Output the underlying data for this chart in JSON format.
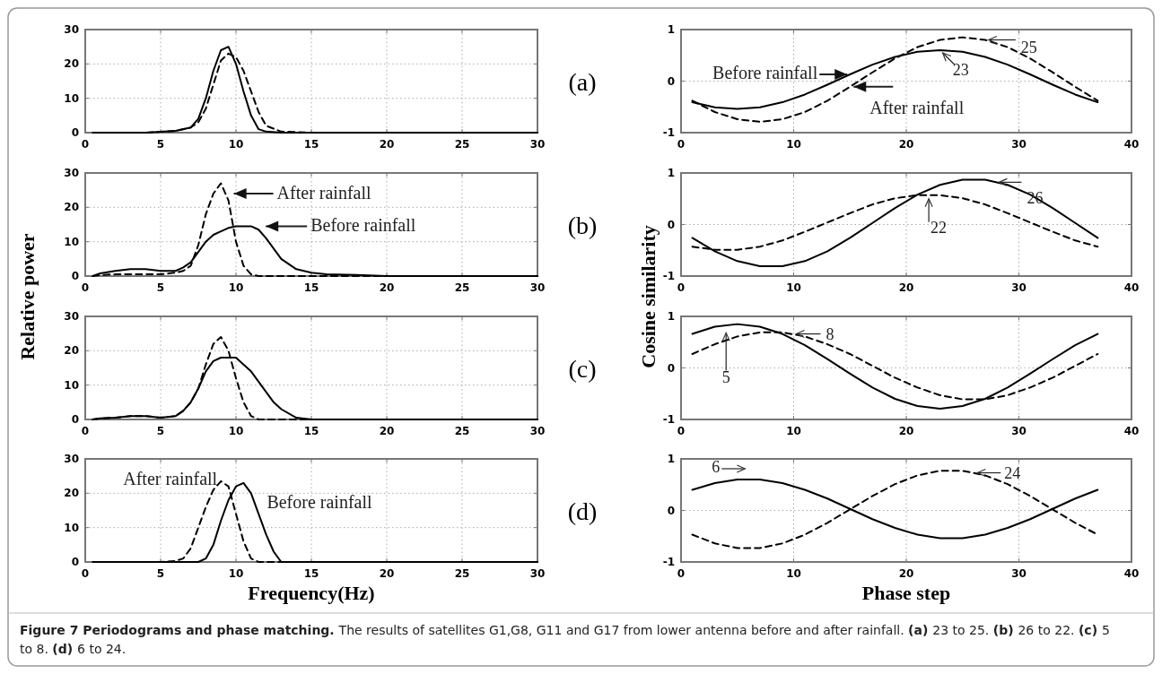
{
  "chart_data": [
    {
      "type": "line",
      "annotations": [
        "(a)"
      ],
      "xlim": [
        0,
        30
      ],
      "ylim": [
        0,
        30
      ],
      "xticks": [
        0,
        5,
        10,
        15,
        20,
        25,
        30
      ],
      "yticks": [
        0,
        10,
        20,
        30
      ],
      "grid": true,
      "series": [
        {
          "color": "#000000",
          "line_style": "solid",
          "x": [
            0.5,
            2,
            4,
            6,
            7,
            7.5,
            8,
            8.5,
            9,
            9.5,
            10,
            10.5,
            11,
            11.5,
            12,
            13,
            15,
            20,
            25,
            30
          ],
          "values": [
            0,
            0,
            0,
            0.5,
            1.5,
            4,
            10,
            18,
            24,
            25,
            20,
            12,
            5,
            1,
            0.3,
            0,
            0,
            0,
            0,
            0
          ]
        },
        {
          "color": "#000000",
          "line_style": "dashed",
          "x": [
            0.5,
            2,
            4,
            6,
            7,
            7.5,
            8,
            8.5,
            9,
            9.5,
            10,
            10.5,
            11,
            11.5,
            12,
            13,
            15,
            20,
            25,
            30
          ],
          "values": [
            0,
            0,
            0,
            0.5,
            1.5,
            3,
            7,
            14,
            21,
            23,
            22,
            18,
            12,
            6,
            2,
            0.3,
            0,
            0,
            0,
            0
          ]
        }
      ]
    },
    {
      "type": "line",
      "xlim": [
        0,
        40
      ],
      "ylim": [
        -1,
        1
      ],
      "xticks": [
        0,
        10,
        20,
        30,
        40
      ],
      "yticks": [
        -1,
        0,
        1
      ],
      "grid": true,
      "annotations": [
        {
          "text": "Before rainfall",
          "x": 15,
          "y": 0.13
        },
        {
          "text": "After rainfall",
          "x": 15,
          "y": -0.11
        },
        {
          "text": "23",
          "x": 23,
          "y": 0.6
        },
        {
          "text": "25",
          "x": 27,
          "y": 0.8
        }
      ],
      "series": [
        {
          "color": "#000000",
          "line_style": "solid",
          "x": [
            1,
            3,
            5,
            7,
            9,
            11,
            13,
            15,
            17,
            19,
            21,
            23,
            25,
            27,
            29,
            31,
            33,
            35,
            37
          ],
          "values": [
            -0.41,
            -0.51,
            -0.54,
            -0.51,
            -0.41,
            -0.26,
            -0.07,
            0.13,
            0.32,
            0.47,
            0.57,
            0.6,
            0.57,
            0.47,
            0.32,
            0.13,
            -0.07,
            -0.26,
            -0.41
          ]
        },
        {
          "color": "#000000",
          "line_style": "dashed",
          "x": [
            1,
            3,
            5,
            7,
            9,
            11,
            13,
            15,
            17,
            19,
            21,
            23,
            25,
            27,
            29,
            31,
            33,
            35,
            37
          ],
          "values": [
            -0.38,
            -0.6,
            -0.74,
            -0.79,
            -0.74,
            -0.6,
            -0.38,
            -0.11,
            0.17,
            0.44,
            0.66,
            0.8,
            0.85,
            0.8,
            0.66,
            0.44,
            0.17,
            -0.11,
            -0.38
          ]
        }
      ]
    },
    {
      "type": "line",
      "ylabel": "Relative power",
      "xlim": [
        0,
        30
      ],
      "ylim": [
        0,
        30
      ],
      "xticks": [
        0,
        5,
        10,
        15,
        20,
        25,
        30
      ],
      "yticks": [
        0,
        10,
        20,
        30
      ],
      "grid": true,
      "annotations": [
        "(b)",
        {
          "text": "After rainfall",
          "x": 9.5,
          "y": 24
        },
        {
          "text": "Before rainfall",
          "x": 11.5,
          "y": 14.5
        }
      ],
      "series": [
        {
          "color": "#000000",
          "line_style": "solid",
          "x": [
            0.5,
            1,
            2,
            3,
            4,
            5,
            6,
            6.5,
            7,
            7.5,
            8,
            8.5,
            9,
            9.5,
            10,
            10.5,
            11,
            11.5,
            12,
            12.5,
            13,
            14,
            15,
            16,
            18,
            20,
            25,
            30
          ],
          "values": [
            0,
            0.8,
            1.5,
            2,
            2,
            1.5,
            1.5,
            2.5,
            4,
            7,
            10,
            12,
            13,
            14,
            14.5,
            14.5,
            14.5,
            13.5,
            11,
            8,
            5,
            2,
            1,
            0.5,
            0.3,
            0,
            0,
            0
          ]
        },
        {
          "color": "#000000",
          "line_style": "dashed",
          "x": [
            0.5,
            1,
            2,
            3,
            4,
            5,
            6,
            6.5,
            7,
            7.5,
            8,
            8.5,
            9,
            9.5,
            10,
            10.5,
            11,
            11.5,
            12,
            12.5,
            13,
            14,
            15,
            16,
            18,
            20,
            25,
            30
          ],
          "values": [
            0,
            0.3,
            0.5,
            0.5,
            0.5,
            0.5,
            1,
            1.5,
            3,
            9,
            18,
            24,
            27,
            22,
            10,
            3,
            0.5,
            0,
            0,
            0,
            0,
            0,
            0,
            0,
            0,
            0,
            0,
            0
          ]
        }
      ]
    },
    {
      "type": "line",
      "ylabel": "Cosine similarity",
      "xlim": [
        0,
        40
      ],
      "ylim": [
        -1,
        1
      ],
      "xticks": [
        0,
        10,
        20,
        30,
        40
      ],
      "yticks": [
        -1,
        0,
        1
      ],
      "grid": true,
      "annotations": [
        {
          "text": "26",
          "x": 28,
          "y": 0.82
        },
        {
          "text": "22",
          "x": 22,
          "y": 0.57
        }
      ],
      "series": [
        {
          "color": "#000000",
          "line_style": "solid",
          "x": [
            1,
            3,
            5,
            7,
            9,
            11,
            13,
            15,
            17,
            19,
            21,
            23,
            25,
            27,
            29,
            31,
            33,
            35,
            37
          ],
          "values": [
            -0.26,
            -0.52,
            -0.71,
            -0.81,
            -0.81,
            -0.71,
            -0.52,
            -0.26,
            0.03,
            0.32,
            0.58,
            0.77,
            0.87,
            0.87,
            0.77,
            0.58,
            0.32,
            0.03,
            -0.26
          ]
        },
        {
          "color": "#000000",
          "line_style": "dashed",
          "x": [
            1,
            3,
            5,
            7,
            9,
            11,
            13,
            15,
            17,
            19,
            21,
            23,
            25,
            27,
            29,
            31,
            33,
            35,
            37
          ],
          "values": [
            -0.43,
            -0.49,
            -0.49,
            -0.43,
            -0.31,
            -0.14,
            0.04,
            0.22,
            0.39,
            0.51,
            0.57,
            0.57,
            0.51,
            0.39,
            0.22,
            0.04,
            -0.14,
            -0.31,
            -0.43
          ]
        }
      ]
    },
    {
      "type": "line",
      "annotations": [
        "(c)"
      ],
      "xlim": [
        0,
        30
      ],
      "ylim": [
        0,
        30
      ],
      "xticks": [
        0,
        5,
        10,
        15,
        20,
        25,
        30
      ],
      "yticks": [
        0,
        10,
        20,
        30
      ],
      "grid": true,
      "series": [
        {
          "color": "#000000",
          "line_style": "solid",
          "x": [
            0.5,
            1,
            2,
            3,
            4,
            5,
            6,
            6.5,
            7,
            7.5,
            8,
            8.5,
            9,
            9.5,
            10,
            10.5,
            11,
            11.5,
            12,
            12.5,
            13,
            14,
            15,
            20,
            25,
            30
          ],
          "values": [
            0,
            0.3,
            0.5,
            1,
            1,
            0.5,
            1,
            2.5,
            5,
            9,
            14,
            17,
            18,
            18,
            18,
            16,
            14,
            11,
            8,
            5,
            3,
            0.5,
            0,
            0,
            0,
            0
          ]
        },
        {
          "color": "#000000",
          "line_style": "dashed",
          "x": [
            0.5,
            1,
            2,
            3,
            4,
            5,
            6,
            6.5,
            7,
            7.5,
            8,
            8.5,
            9,
            9.5,
            10,
            10.5,
            11,
            11.5,
            12,
            12.5,
            13,
            14,
            15,
            20,
            25,
            30
          ],
          "values": [
            0,
            0.3,
            0.5,
            1,
            1,
            0.5,
            1,
            2.5,
            5,
            9,
            16,
            22,
            24,
            20,
            12,
            5,
            1,
            0,
            0,
            0,
            0,
            0,
            0,
            0,
            0,
            0
          ]
        }
      ]
    },
    {
      "type": "line",
      "xlim": [
        0,
        40
      ],
      "ylim": [
        -1,
        1
      ],
      "xticks": [
        0,
        10,
        20,
        30,
        40
      ],
      "yticks": [
        -1,
        0,
        1
      ],
      "grid": true,
      "annotations": [
        {
          "text": "8",
          "x": 10,
          "y": 0.66
        },
        {
          "text": "5",
          "x": 4,
          "y": 0.75
        }
      ],
      "series": [
        {
          "color": "#000000",
          "line_style": "solid",
          "x": [
            1,
            3,
            5,
            7,
            9,
            11,
            13,
            15,
            17,
            19,
            21,
            23,
            25,
            27,
            29,
            31,
            33,
            35,
            37
          ],
          "values": [
            0.66,
            0.8,
            0.85,
            0.8,
            0.66,
            0.44,
            0.17,
            -0.11,
            -0.38,
            -0.6,
            -0.74,
            -0.79,
            -0.74,
            -0.6,
            -0.38,
            -0.11,
            0.17,
            0.44,
            0.66
          ]
        },
        {
          "color": "#000000",
          "line_style": "dashed",
          "x": [
            1,
            3,
            5,
            7,
            9,
            11,
            13,
            15,
            17,
            19,
            21,
            23,
            25,
            27,
            29,
            31,
            33,
            35,
            37
          ],
          "values": [
            0.27,
            0.46,
            0.61,
            0.69,
            0.69,
            0.61,
            0.46,
            0.27,
            0.04,
            -0.19,
            -0.38,
            -0.53,
            -0.61,
            -0.61,
            -0.53,
            -0.38,
            -0.19,
            0.04,
            0.27
          ]
        }
      ]
    },
    {
      "type": "line",
      "xlabel": "Frequency(Hz)",
      "xlim": [
        0,
        30
      ],
      "ylim": [
        0,
        30
      ],
      "xticks": [
        0,
        5,
        10,
        15,
        20,
        25,
        30
      ],
      "yticks": [
        0,
        10,
        20,
        30
      ],
      "grid": true,
      "annotations": [
        "(d)",
        {
          "text": "After rainfall",
          "x": 9,
          "y": 23.5
        },
        {
          "text": "Before rainfall",
          "x": 10.5,
          "y": 23
        }
      ],
      "series": [
        {
          "color": "#000000",
          "line_style": "solid",
          "x": [
            0.5,
            5,
            6,
            6.5,
            7,
            7.5,
            8,
            8.5,
            9,
            9.5,
            10,
            10.5,
            11,
            11.5,
            12,
            12.5,
            13,
            15,
            20,
            25,
            30
          ],
          "values": [
            0,
            0,
            0,
            0,
            0,
            0,
            1,
            5,
            12,
            18,
            22,
            23,
            20,
            14,
            8,
            3,
            0,
            0,
            0,
            0,
            0
          ]
        },
        {
          "color": "#000000",
          "line_style": "dashed",
          "x": [
            0.5,
            5,
            6,
            6.5,
            7,
            7.5,
            8,
            8.5,
            9,
            9.5,
            10,
            10.5,
            11,
            11.5,
            12,
            12.5,
            13,
            15,
            20,
            25,
            30
          ],
          "values": [
            0,
            0,
            0.3,
            1,
            4,
            10,
            16,
            21,
            23.5,
            22,
            14,
            6,
            1,
            0,
            0,
            0,
            0,
            0,
            0,
            0,
            0
          ]
        }
      ]
    },
    {
      "type": "line",
      "xlabel": "Phase step",
      "xlim": [
        0,
        40
      ],
      "ylim": [
        -1,
        1
      ],
      "xticks": [
        0,
        10,
        20,
        30,
        40
      ],
      "yticks": [
        -1,
        0,
        1
      ],
      "grid": true,
      "annotations": [
        {
          "text": "6",
          "x": 6,
          "y": 0.6
        },
        {
          "text": "24",
          "x": 26,
          "y": 0.73
        },
        "Figure 7 Periodograms and phase matching.",
        "The results of satellites G1,G8, G11 and G17 from lower antenna before and after rainfall. (a) 23 to 25. (b) 26 to 22. (c) 5 to 8. (d) 6 to 24."
      ],
      "series": [
        {
          "color": "#000000",
          "line_style": "solid",
          "x": [
            1,
            3,
            5,
            7,
            9,
            11,
            13,
            15,
            17,
            19,
            21,
            23,
            25,
            27,
            29,
            31,
            33,
            35,
            37
          ],
          "values": [
            0.4,
            0.53,
            0.6,
            0.6,
            0.53,
            0.4,
            0.23,
            0.03,
            -0.17,
            -0.34,
            -0.47,
            -0.54,
            -0.54,
            -0.47,
            -0.34,
            -0.17,
            0.03,
            0.23,
            0.4
          ]
        },
        {
          "color": "#000000",
          "line_style": "dashed",
          "x": [
            1,
            3,
            5,
            7,
            9,
            11,
            13,
            15,
            17,
            19,
            21,
            23,
            25,
            27,
            29,
            31,
            33,
            35,
            37
          ],
          "values": [
            -0.47,
            -0.64,
            -0.73,
            -0.73,
            -0.64,
            -0.47,
            -0.24,
            0.02,
            0.28,
            0.51,
            0.68,
            0.77,
            0.77,
            0.68,
            0.51,
            0.28,
            0.02,
            -0.24,
            -0.47
          ]
        }
      ]
    }
  ]
}
